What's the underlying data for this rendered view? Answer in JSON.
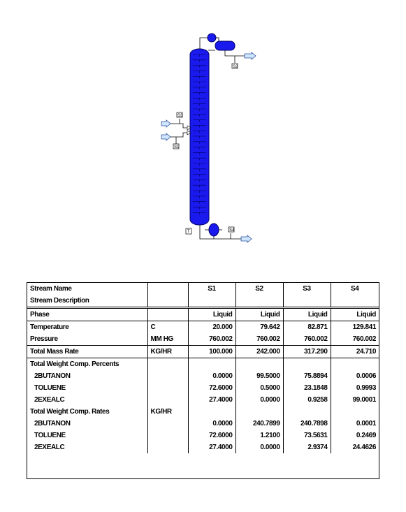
{
  "diagram": {
    "tags": [
      "S2",
      "S1",
      "S3",
      "S4",
      "T"
    ]
  },
  "table": {
    "headers": {
      "stream_name": "Stream Name",
      "stream_description": "Stream Description",
      "streams": [
        "S1",
        "S2",
        "S3",
        "S4"
      ]
    },
    "phase": {
      "label": "Phase",
      "values": [
        "Liquid",
        "Liquid",
        "Liquid",
        "Liquid"
      ]
    },
    "temperature": {
      "label": "Temperature",
      "unit": "C",
      "values": [
        "20.000",
        "79.642",
        "82.871",
        "129.841"
      ]
    },
    "pressure": {
      "label": "Pressure",
      "unit": "MM HG",
      "values": [
        "760.002",
        "760.002",
        "760.002",
        "760.002"
      ]
    },
    "total_mass_rate": {
      "label": "Total Mass Rate",
      "unit": "KG/HR",
      "values": [
        "100.000",
        "242.000",
        "317.290",
        "24.710"
      ]
    },
    "weight_percents": {
      "label": "Total Weight Comp. Percents",
      "rows": [
        {
          "name": "2BUTANON",
          "values": [
            "0.0000",
            "99.5000",
            "75.8894",
            "0.0006"
          ]
        },
        {
          "name": "TOLUENE",
          "values": [
            "72.6000",
            "0.5000",
            "23.1848",
            "0.9993"
          ]
        },
        {
          "name": "2EXEALC",
          "values": [
            "27.4000",
            "0.0000",
            "0.9258",
            "99.0001"
          ]
        }
      ]
    },
    "weight_rates": {
      "label": "Total Weight Comp. Rates",
      "unit": "KG/HR",
      "rows": [
        {
          "name": "2BUTANON",
          "values": [
            "0.0000",
            "240.7899",
            "240.7898",
            "0.0001"
          ]
        },
        {
          "name": "TOLUENE",
          "values": [
            "72.6000",
            "1.2100",
            "73.5631",
            "0.2469"
          ]
        },
        {
          "name": "2EXEALC",
          "values": [
            "27.4000",
            "0.0000",
            "2.9374",
            "24.4626"
          ]
        }
      ]
    }
  }
}
